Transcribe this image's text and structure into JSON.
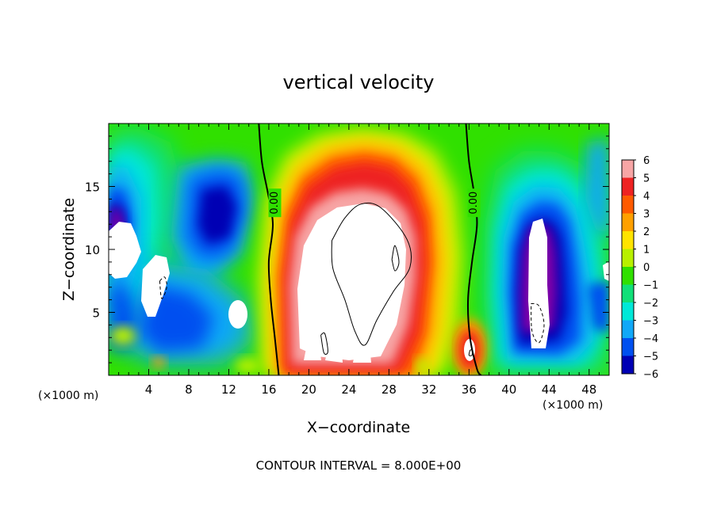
{
  "chart_data": {
    "type": "heatmap",
    "title": "vertical velocity",
    "xlabel": "X−coordinate",
    "ylabel": "Z−coordinate",
    "x_unit_left": "(×1000 m)",
    "x_unit_right": "(×1000 m)",
    "xlim": [
      0,
      50
    ],
    "ylim": [
      0,
      20
    ],
    "x_ticks": [
      4,
      8,
      12,
      16,
      20,
      24,
      28,
      32,
      36,
      40,
      44,
      48
    ],
    "x_tick_labels": [
      "4",
      "8",
      "12",
      "16",
      "20",
      "24",
      "28",
      "32",
      "36",
      "40",
      "44",
      "48"
    ],
    "y_ticks": [
      5,
      10,
      15
    ],
    "y_tick_labels": [
      "5",
      "10",
      "15"
    ],
    "colorbar": {
      "values": [
        6,
        5,
        4,
        3,
        2,
        1,
        0,
        -1,
        -2,
        -3,
        -4,
        -5,
        -6
      ],
      "labels": [
        "6",
        "5",
        "4",
        "3",
        "2",
        "1",
        "0",
        "−1",
        "−2",
        "−3",
        "−4",
        "−5",
        "−6"
      ],
      "colors": [
        "#f7a5a5",
        "#ee2222",
        "#ff5a00",
        "#ffa000",
        "#ffe400",
        "#b8f000",
        "#30e000",
        "#10e078",
        "#00e8d8",
        "#10a8f8",
        "#0050f0",
        "#0000b4",
        "#8400a8"
      ],
      "saturation_color": "#ffffff"
    },
    "contour_labels": [
      {
        "text": "0.00",
        "x": 16.6,
        "z": 13.7
      },
      {
        "text": "0.00",
        "x": 36.5,
        "z": 13.7
      }
    ],
    "zero_contours": [
      [
        [
          15.0,
          20.0
        ],
        [
          15.3,
          17.0
        ],
        [
          15.9,
          14.5
        ],
        [
          16.4,
          12.0
        ],
        [
          16.0,
          9.0
        ],
        [
          16.2,
          6.0
        ],
        [
          16.6,
          3.0
        ],
        [
          17.0,
          0.0
        ]
      ],
      [
        [
          35.7,
          20.0
        ],
        [
          36.0,
          17.0
        ],
        [
          36.5,
          14.5
        ],
        [
          36.8,
          12.0
        ],
        [
          36.3,
          9.0
        ],
        [
          35.9,
          6.0
        ],
        [
          36.1,
          3.0
        ],
        [
          36.8,
          0.5
        ],
        [
          37.2,
          0.0
        ]
      ]
    ],
    "positive_contours": [
      [
        [
          22.3,
          10.7
        ],
        [
          23.6,
          12.5
        ],
        [
          25.2,
          13.6
        ],
        [
          27.2,
          13.3
        ],
        [
          29.8,
          10.8
        ],
        [
          30.1,
          8.6
        ],
        [
          28.4,
          6.6
        ],
        [
          26.8,
          4.4
        ],
        [
          25.6,
          2.4
        ],
        [
          24.6,
          3.5
        ],
        [
          23.6,
          6.0
        ],
        [
          22.4,
          8.5
        ],
        [
          22.3,
          10.7
        ]
      ],
      [
        [
          28.3,
          9.2
        ],
        [
          28.6,
          10.3
        ],
        [
          29.0,
          9.0
        ],
        [
          28.6,
          8.3
        ],
        [
          28.3,
          9.2
        ]
      ],
      [
        [
          21.2,
          3.2
        ],
        [
          21.6,
          3.3
        ],
        [
          21.9,
          1.9
        ],
        [
          21.5,
          1.8
        ],
        [
          21.2,
          3.2
        ]
      ],
      [
        [
          36.1,
          2.0
        ],
        [
          36.3,
          2.0
        ],
        [
          36.3,
          1.6
        ],
        [
          36.0,
          1.6
        ],
        [
          36.1,
          2.0
        ]
      ]
    ],
    "negative_contours": [
      [
        [
          5.1,
          7.5
        ],
        [
          5.6,
          7.8
        ],
        [
          5.8,
          7.0
        ],
        [
          5.3,
          6.1
        ],
        [
          5.1,
          7.5
        ]
      ],
      [
        [
          42.2,
          5.7
        ],
        [
          43.0,
          5.5
        ],
        [
          43.5,
          4.0
        ],
        [
          43.0,
          2.6
        ],
        [
          42.3,
          3.5
        ],
        [
          42.2,
          5.7
        ]
      ]
    ],
    "footer": "CONTOUR INTERVAL =  8.000E+00"
  }
}
